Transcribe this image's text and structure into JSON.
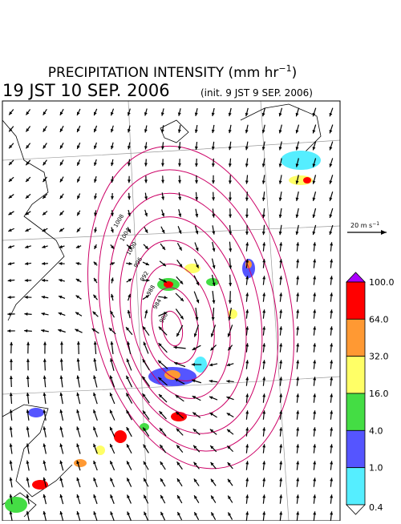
{
  "header": {
    "title": "PRECIPITATION INTENSITY (mm hr",
    "title_exponent": "−1",
    "title_close": ")",
    "valid_time": "19 JST 10 SEP. 2006",
    "init": "(init. 9 JST 9 SEP. 2006)"
  },
  "scale": {
    "label": "20 m s",
    "label_exponent": "−1"
  },
  "colorbar": {
    "labels": [
      "100.0",
      "64.0",
      "32.0",
      "16.0",
      "4.0",
      "1.0",
      "0.4"
    ],
    "colors": [
      "#ff0000",
      "#ff9933",
      "#ffff66",
      "#44dd44",
      "#5555ff",
      "#55eeff"
    ],
    "over_color": "#aa00ff",
    "under_color": "#ffffff"
  },
  "isobars": {
    "labels": [
      "1008",
      "1004",
      "1000",
      "996",
      "992",
      "988",
      "984",
      "980"
    ]
  }
}
